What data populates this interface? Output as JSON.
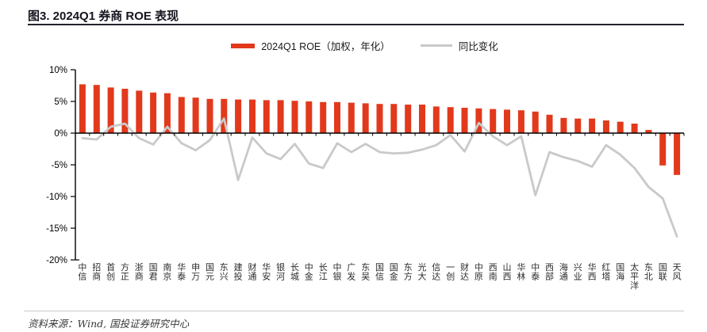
{
  "header": {
    "title": "图3. 2024Q1 券商 ROE 表现"
  },
  "footer": {
    "source": "资料来源：Wind, 国投证券研究中心"
  },
  "colors": {
    "bar_red": "#E2391C",
    "line_gray": "#C9C9C9",
    "title_text": "#15151F",
    "axis_black": "#000000"
  },
  "chart_data": {
    "type": "bar",
    "title": "图3. 2024Q1 券商 ROE 表现",
    "categories": [
      "中信",
      "招商",
      "首创",
      "方正",
      "浙商",
      "国君",
      "南京",
      "华泰",
      "申万",
      "国元",
      "东兴",
      "建投",
      "财通",
      "华安",
      "银河",
      "长城",
      "中金",
      "长江",
      "中银",
      "广发",
      "东吴",
      "国信",
      "国金",
      "东方",
      "光大",
      "信达",
      "一创",
      "财达",
      "中原",
      "西南",
      "山西",
      "华林",
      "中泰",
      "西部",
      "海通",
      "兴业",
      "华西",
      "红塔",
      "国海",
      "太平洋",
      "东北",
      "国联",
      "天风"
    ],
    "series": [
      {
        "name": "2024Q1 ROE（加权，年化）",
        "type": "bar",
        "color": "#E2391C",
        "values": [
          7.7,
          7.6,
          7.2,
          7.0,
          6.7,
          6.4,
          6.3,
          5.7,
          5.6,
          5.4,
          5.4,
          5.3,
          5.3,
          5.2,
          5.2,
          5.1,
          5.0,
          4.9,
          4.9,
          4.8,
          4.7,
          4.6,
          4.6,
          4.5,
          4.5,
          4.2,
          4.1,
          4.0,
          3.9,
          3.8,
          3.7,
          3.6,
          3.4,
          2.9,
          2.4,
          2.3,
          2.3,
          2.0,
          1.8,
          1.5,
          0.5,
          -5.1,
          -6.6
        ]
      },
      {
        "name": "同比变化",
        "type": "line",
        "color": "#C9C9C9",
        "values": [
          -0.8,
          -1.0,
          1.0,
          1.5,
          -0.8,
          -1.8,
          1.0,
          -1.6,
          -2.7,
          -1.1,
          2.3,
          -7.4,
          -0.7,
          -3.2,
          -4.1,
          -1.7,
          -4.8,
          -5.5,
          -1.6,
          -3.0,
          -1.7,
          -3.0,
          -3.2,
          -3.1,
          -2.6,
          -1.9,
          -0.3,
          -2.9,
          1.6,
          -0.5,
          -1.9,
          -0.5,
          -9.8,
          -3.0,
          -3.8,
          -4.4,
          -5.3,
          -1.9,
          -3.4,
          -5.5,
          -8.5,
          -10.3,
          -16.3
        ]
      }
    ],
    "xlabel": "",
    "ylabel": "",
    "ylim": [
      -20,
      10
    ],
    "ytick_step": 5,
    "ytick_labels": [
      "10%",
      "5%",
      "0%",
      "-5%",
      "-10%",
      "-15%",
      "-20%"
    ],
    "grid": false,
    "legend_position": "top-center",
    "x_label_orientation": "vertical"
  }
}
